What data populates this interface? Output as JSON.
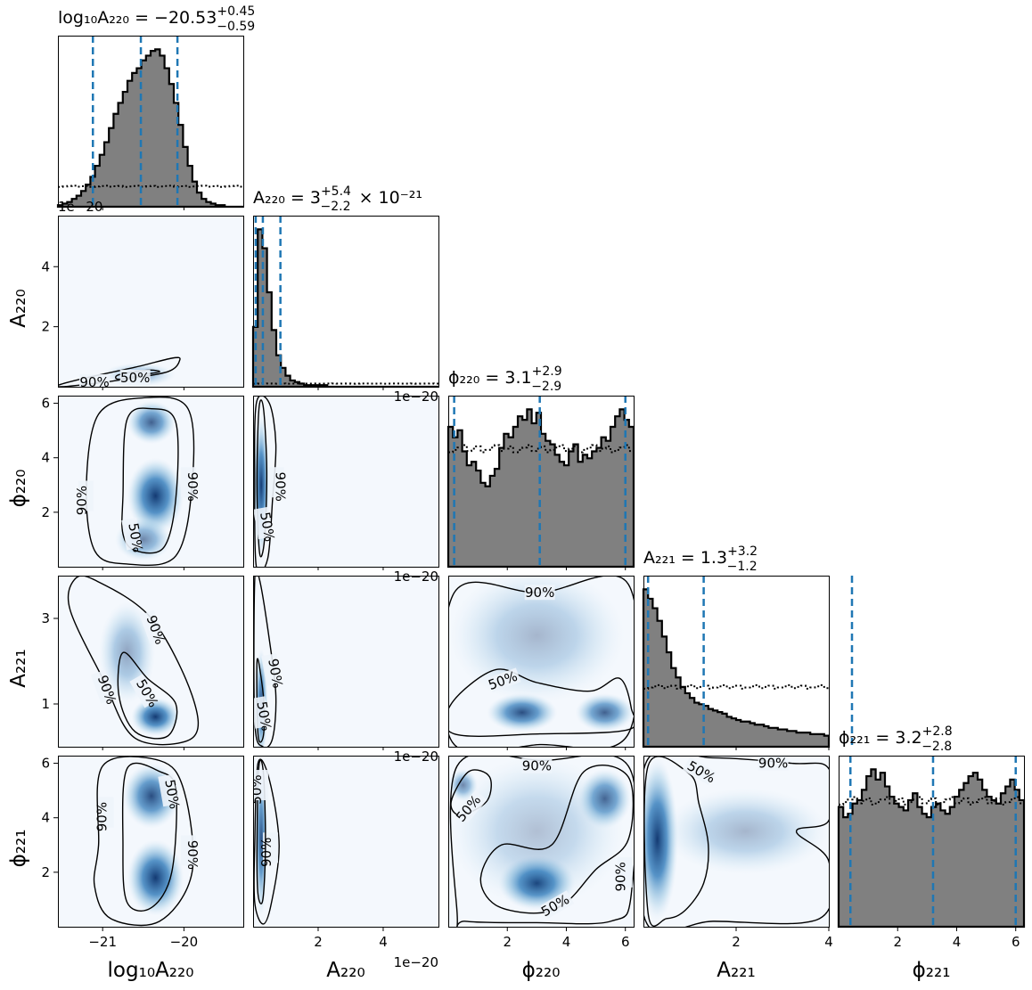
{
  "chart_data": {
    "type": "corner",
    "parameters": [
      "log10A220",
      "A220",
      "phi220",
      "A221",
      "phi221"
    ],
    "panel_titles": [
      {
        "param": "log10A220",
        "label": "log₁₀A₂₂₀",
        "median": "−20.53",
        "plus": "+0.45",
        "minus": "−0.59",
        "suffix": ""
      },
      {
        "param": "A220",
        "label": "A₂₂₀",
        "median": "3",
        "plus": "+5.4",
        "minus": "−2.2",
        "suffix": " × 10⁻²¹"
      },
      {
        "param": "phi220",
        "label": "ϕ₂₂₀",
        "median": "3.1",
        "plus": "+2.9",
        "minus": "−2.9",
        "suffix": ""
      },
      {
        "param": "A221",
        "label": "A₂₂₁",
        "median": "1.3",
        "plus": "+3.2",
        "minus": "−1.2",
        "suffix": ""
      },
      {
        "param": "phi221",
        "label": "ϕ₂₂₁",
        "median": "3.2",
        "plus": "+2.8",
        "minus": "−2.8",
        "suffix": ""
      }
    ],
    "axis_labels": {
      "log10A220": "log₁₀A₂₂₀",
      "A220": "A₂₂₀",
      "phi220": "ϕ₂₂₀",
      "A221": "A₂₂₁",
      "phi221": "ϕ₂₂₁"
    },
    "ranges": {
      "log10A220": [
        -21.55,
        -19.27
      ],
      "A220": [
        0.0,
        5.7
      ],
      "phi220": [
        0.0,
        6.28
      ],
      "A221": [
        0.0,
        4.0
      ],
      "phi221": [
        0.0,
        6.28
      ]
    },
    "ticks": {
      "log10A220": [
        -21,
        -20
      ],
      "A220": [
        2,
        4
      ],
      "phi220": [
        2,
        4,
        6
      ],
      "A221": [
        1,
        3
      ],
      "A221_x": [
        2,
        4
      ],
      "phi221": [
        2,
        4,
        6
      ]
    },
    "offset_text": "1e−20",
    "contour_levels": [
      "50%",
      "90%"
    ],
    "quantile_lines": {
      "log10A220": [
        -21.12,
        -20.53,
        -20.08
      ],
      "A220": [
        0.08,
        0.3,
        0.84
      ],
      "phi220": [
        0.2,
        3.1,
        6.0
      ],
      "A221": [
        0.1,
        1.3,
        4.5
      ],
      "phi221": [
        0.4,
        3.2,
        6.0
      ]
    },
    "histograms": {
      "log10A220": {
        "x_min": -21.55,
        "x_max": -19.27,
        "counts": [
          1,
          2,
          3,
          5,
          7,
          10,
          14,
          19,
          26,
          33,
          41,
          50,
          59,
          66,
          73,
          80,
          85,
          88,
          93,
          96,
          99,
          100,
          96,
          88,
          78,
          66,
          52,
          38,
          26,
          16,
          9,
          5,
          3,
          2,
          1,
          1,
          0,
          0,
          0,
          0
        ]
      },
      "A220": {
        "x_min": 0.0,
        "x_max": 5.7,
        "counts": [
          38,
          100,
          88,
          60,
          36,
          20,
          12,
          7,
          4,
          3,
          2,
          1,
          1,
          1,
          1,
          1,
          0,
          0,
          0,
          0,
          0,
          0,
          0,
          0,
          0,
          0,
          0,
          0,
          0,
          0,
          0,
          0,
          0,
          0,
          0,
          0,
          0,
          0,
          0,
          0
        ]
      },
      "phi220": {
        "x_min": 0.0,
        "x_max": 6.28,
        "counts": [
          80,
          74,
          78,
          66,
          58,
          60,
          55,
          48,
          46,
          52,
          56,
          68,
          76,
          74,
          80,
          86,
          84,
          90,
          82,
          88,
          76,
          72,
          70,
          64,
          60,
          58,
          66,
          70,
          60,
          64,
          62,
          66,
          68,
          74,
          72,
          80,
          86,
          90,
          84,
          80
        ]
      },
      "A221": {
        "x_min": 0.0,
        "x_max": 4.0,
        "counts": [
          100,
          94,
          88,
          80,
          70,
          60,
          50,
          44,
          38,
          34,
          31,
          28,
          27,
          26,
          24,
          23,
          22,
          21,
          19,
          18,
          17,
          16,
          16,
          15,
          14,
          14,
          13,
          12,
          12,
          11,
          11,
          10,
          10,
          9,
          9,
          9,
          8,
          8,
          8,
          7
        ]
      },
      "phi221": {
        "x_min": 0.0,
        "x_max": 6.28,
        "counts": [
          70,
          64,
          66,
          72,
          74,
          80,
          88,
          92,
          86,
          90,
          82,
          76,
          72,
          70,
          68,
          74,
          78,
          70,
          66,
          64,
          70,
          72,
          68,
          66,
          70,
          76,
          80,
          84,
          88,
          90,
          86,
          80,
          76,
          74,
          72,
          78,
          82,
          86,
          80,
          74
        ]
      }
    },
    "prior_line_style": "dotted"
  }
}
